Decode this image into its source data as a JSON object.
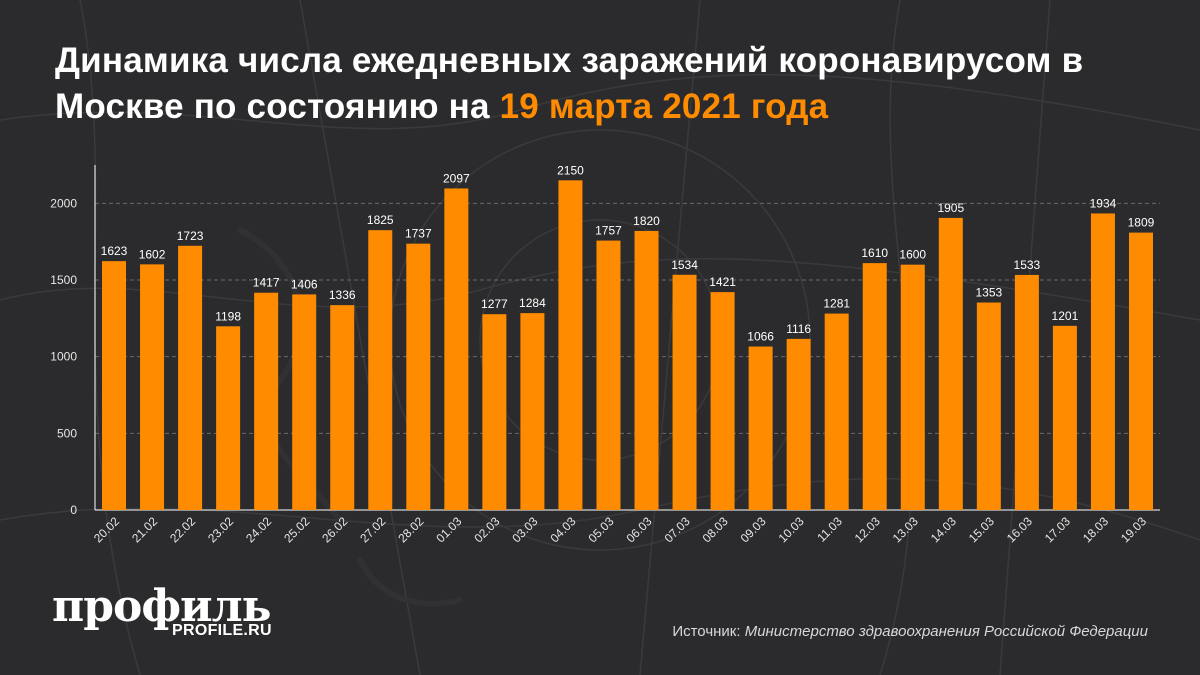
{
  "title": {
    "main": "Динамика числа ежедневных заражений коронавирусом в Москве по состоянию на",
    "highlight": "19 марта 2021 года"
  },
  "colors": {
    "background": "#2b2b2d",
    "bar": "#ff8c00",
    "highlight": "#ff8c00",
    "text": "#ffffff"
  },
  "brand": {
    "logo": "профиль",
    "site": "PROFILE.RU"
  },
  "source": {
    "label": "Источник:",
    "value": "Министерство здравоохранения Российской Федерации"
  },
  "chart_data": {
    "type": "bar",
    "categories": [
      "20.02",
      "21.02",
      "22.02",
      "23.02",
      "24.02",
      "25.02",
      "26.02",
      "27.02",
      "28.02",
      "01.03",
      "02.03",
      "03.03",
      "04.03",
      "05.03",
      "06.03",
      "07.03",
      "08.03",
      "09.03",
      "10.03",
      "11.03",
      "12.03",
      "13.03",
      "14.03",
      "15.03",
      "16.03",
      "17.03",
      "18.03",
      "19.03"
    ],
    "values": [
      1623,
      1602,
      1723,
      1198,
      1417,
      1406,
      1336,
      1825,
      1737,
      2097,
      1277,
      1284,
      2150,
      1757,
      1820,
      1534,
      1421,
      1066,
      1116,
      1281,
      1610,
      1600,
      1905,
      1353,
      1533,
      1201,
      1934,
      1809
    ],
    "y_ticks": [
      0,
      500,
      1000,
      1500,
      2000
    ],
    "ylim": [
      0,
      2250
    ],
    "grid": true,
    "data_labels": true,
    "xlabel": "",
    "ylabel": ""
  }
}
